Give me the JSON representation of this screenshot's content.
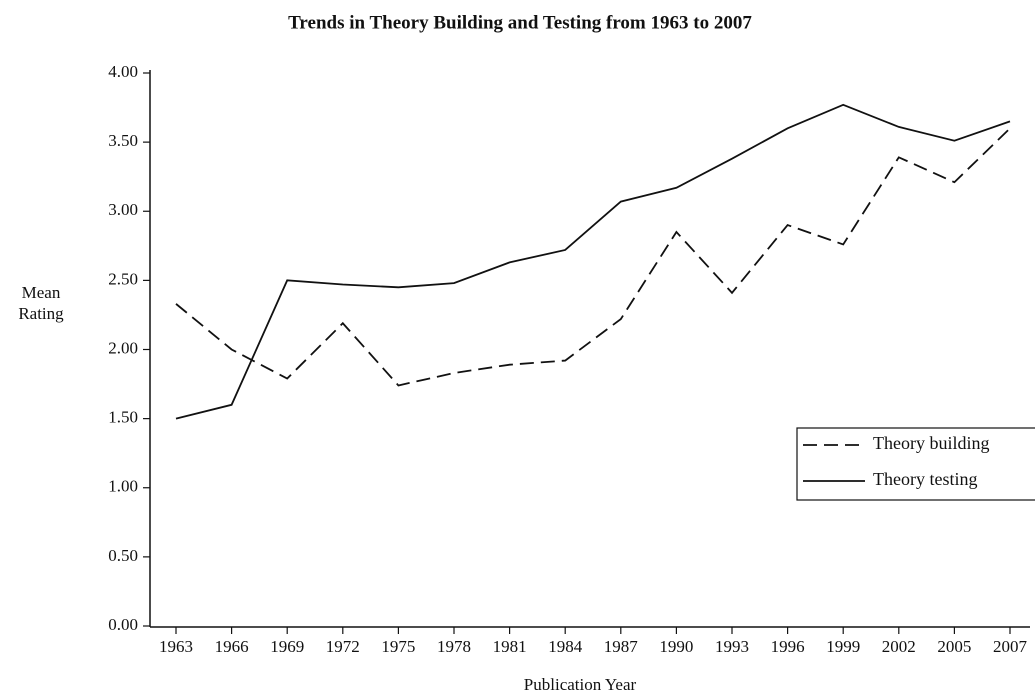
{
  "chart_data": {
    "type": "line",
    "title": "Trends in Theory Building and Testing from 1963 to 2007",
    "x_label": "Publication Year",
    "y_label": "Mean Rating",
    "categories": [
      "1963",
      "1966",
      "1969",
      "1972",
      "1975",
      "1978",
      "1981",
      "1984",
      "1987",
      "1990",
      "1993",
      "1996",
      "1999",
      "2002",
      "2005",
      "2007"
    ],
    "series": [
      {
        "name": "Theory building",
        "color": "#111111",
        "linestyle": "dashed",
        "values": [
          2.33,
          2.0,
          1.79,
          2.19,
          1.74,
          1.83,
          1.89,
          1.92,
          2.22,
          2.85,
          2.41,
          2.9,
          2.76,
          3.39,
          3.21,
          3.6
        ]
      },
      {
        "name": "Theory testing",
        "color": "#111111",
        "linestyle": "solid",
        "values": [
          1.5,
          1.6,
          2.5,
          2.47,
          2.45,
          2.48,
          2.63,
          2.72,
          3.07,
          3.17,
          3.38,
          3.6,
          3.77,
          3.61,
          3.51,
          3.65
        ]
      }
    ],
    "ylim": [
      0,
      4
    ],
    "yticks": [
      {
        "value": 0,
        "label": "0.00"
      },
      {
        "value": 0.5,
        "label": "0.50"
      },
      {
        "value": 1,
        "label": "1.00"
      },
      {
        "value": 1.5,
        "label": "1.50"
      },
      {
        "value": 2,
        "label": "2.00"
      },
      {
        "value": 2.5,
        "label": "2.50"
      },
      {
        "value": 3,
        "label": "3.00"
      },
      {
        "value": 3.5,
        "label": "3.50"
      },
      {
        "value": 4,
        "label": "4.00"
      }
    ],
    "grid": false,
    "legend": "right"
  }
}
